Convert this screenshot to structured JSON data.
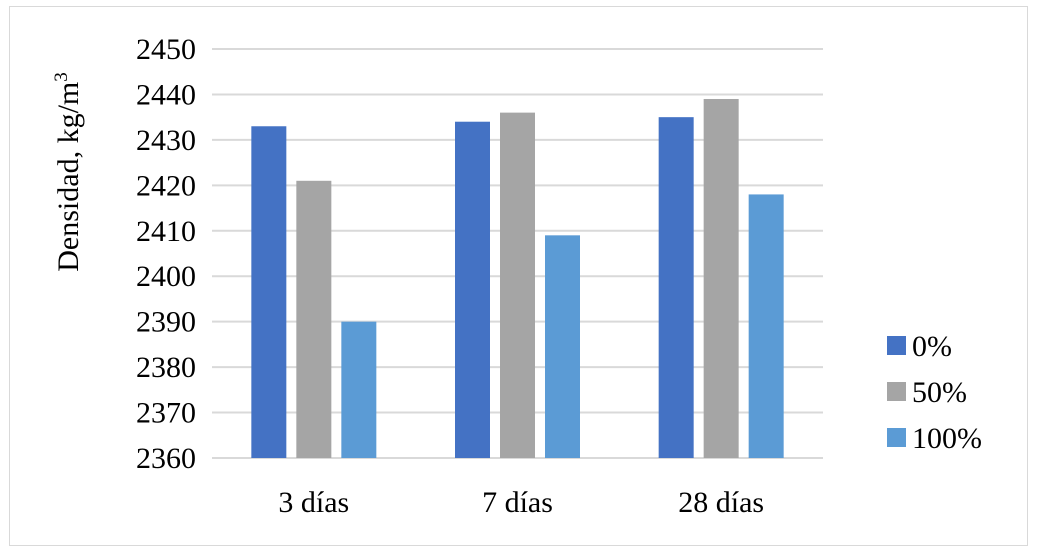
{
  "chart_data": {
    "type": "bar",
    "title": "",
    "xlabel": "",
    "ylabel": "Densidad, kg/m",
    "ylabel_superscript": "3",
    "categories": [
      "3 días",
      "7 días",
      "28 días"
    ],
    "series": [
      {
        "name": "0%",
        "values": [
          2433,
          2434,
          2435
        ],
        "color": "#4472c4"
      },
      {
        "name": "50%",
        "values": [
          2421,
          2436,
          2439
        ],
        "color": "#a5a5a5"
      },
      {
        "name": "100%",
        "values": [
          2390,
          2409,
          2418
        ],
        "color": "#5b9bd5"
      }
    ],
    "ylim": [
      2360,
      2450
    ],
    "yticks": [
      "2360",
      "2370",
      "2380",
      "2390",
      "2400",
      "2410",
      "2420",
      "2430",
      "2440",
      "2450"
    ],
    "grid": true,
    "legend_position": "right",
    "gridline_color": "#d9d9d9"
  }
}
